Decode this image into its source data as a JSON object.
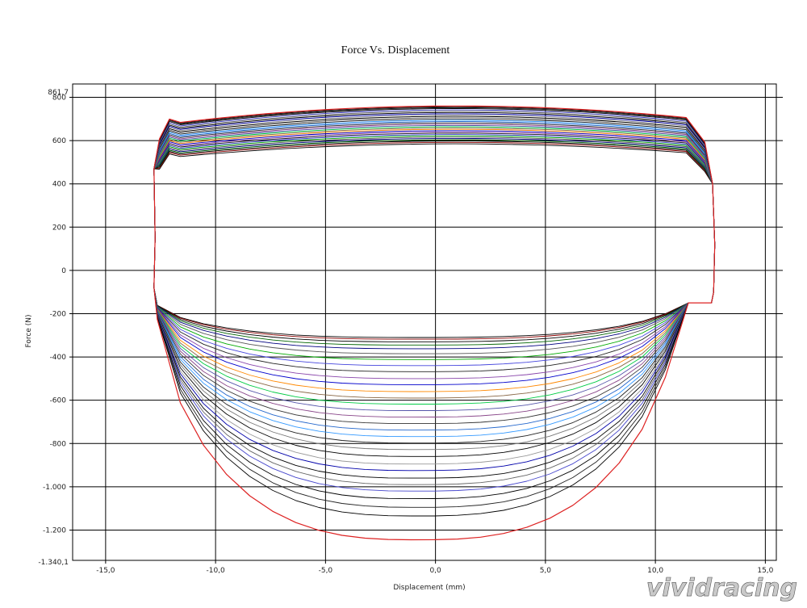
{
  "chart_data": {
    "type": "line",
    "title": "Force Vs. Displacement",
    "xlabel": "Displacement (mm)",
    "ylabel": "Force (N)",
    "xlim": [
      -16.5,
      15.5
    ],
    "ylim": [
      -1340.1,
      861.7
    ],
    "y_limit_labels": {
      "top": "861,7",
      "bottom": "-1.340,1"
    },
    "x_ticks": [
      {
        "value": -15,
        "label": "-15,0"
      },
      {
        "value": -10,
        "label": "-10,0"
      },
      {
        "value": -5,
        "label": "-5,0"
      },
      {
        "value": 0,
        "label": "0,0"
      },
      {
        "value": 5,
        "label": "5,0"
      },
      {
        "value": 10,
        "label": "10,0"
      },
      {
        "value": 15,
        "label": "15,0"
      }
    ],
    "y_ticks": [
      {
        "value": 800,
        "label": "800"
      },
      {
        "value": 600,
        "label": "600"
      },
      {
        "value": 400,
        "label": "400"
      },
      {
        "value": 200,
        "label": "200"
      },
      {
        "value": 0,
        "label": "0"
      },
      {
        "value": -200,
        "label": "-200"
      },
      {
        "value": -400,
        "label": "-400"
      },
      {
        "value": -600,
        "label": "-600"
      },
      {
        "value": -800,
        "label": "-800"
      },
      {
        "value": -1000,
        "label": "-1.000"
      },
      {
        "value": -1200,
        "label": "-1.200"
      }
    ],
    "grid": true,
    "stroke": {
      "x_min": -12.8,
      "x_max": 12.7
    },
    "series": [
      {
        "rebound_peak": 585,
        "compression_peak": -310,
        "color": "#000000"
      },
      {
        "rebound_peak": 592,
        "compression_peak": -318,
        "color": "#8b0000"
      },
      {
        "rebound_peak": 598,
        "compression_peak": -330,
        "color": "#000000"
      },
      {
        "rebound_peak": 604,
        "compression_peak": -345,
        "color": "#006400"
      },
      {
        "rebound_peak": 610,
        "compression_peak": -362,
        "color": "#000080"
      },
      {
        "rebound_peak": 616,
        "compression_peak": -385,
        "color": "#555555"
      },
      {
        "rebound_peak": 622,
        "compression_peak": -412,
        "color": "#00aa00"
      },
      {
        "rebound_peak": 628,
        "compression_peak": -440,
        "color": "#4444dd"
      },
      {
        "rebound_peak": 634,
        "compression_peak": -468,
        "color": "#222222"
      },
      {
        "rebound_peak": 640,
        "compression_peak": -500,
        "color": "#8844aa"
      },
      {
        "rebound_peak": 646,
        "compression_peak": -528,
        "color": "#0000cc"
      },
      {
        "rebound_peak": 652,
        "compression_peak": -560,
        "color": "#ff8800"
      },
      {
        "rebound_peak": 658,
        "compression_peak": -590,
        "color": "#886644"
      },
      {
        "rebound_peak": 664,
        "compression_peak": -618,
        "color": "#00cc44"
      },
      {
        "rebound_peak": 670,
        "compression_peak": -648,
        "color": "#5555aa"
      },
      {
        "rebound_peak": 676,
        "compression_peak": -678,
        "color": "#884488"
      },
      {
        "rebound_peak": 682,
        "compression_peak": -708,
        "color": "#333333"
      },
      {
        "rebound_peak": 688,
        "compression_peak": -738,
        "color": "#2266cc"
      },
      {
        "rebound_peak": 694,
        "compression_peak": -768,
        "color": "#3399ff"
      },
      {
        "rebound_peak": 700,
        "compression_peak": -798,
        "color": "#222222"
      },
      {
        "rebound_peak": 706,
        "compression_peak": -828,
        "color": "#777777"
      },
      {
        "rebound_peak": 712,
        "compression_peak": -860,
        "color": "#000000"
      },
      {
        "rebound_peak": 718,
        "compression_peak": -895,
        "color": "#999999"
      },
      {
        "rebound_peak": 724,
        "compression_peak": -925,
        "color": "#0000aa"
      },
      {
        "rebound_peak": 730,
        "compression_peak": -960,
        "color": "#000000"
      },
      {
        "rebound_peak": 736,
        "compression_peak": -990,
        "color": "#666666"
      },
      {
        "rebound_peak": 742,
        "compression_peak": -1020,
        "color": "#4444cc"
      },
      {
        "rebound_peak": 748,
        "compression_peak": -1055,
        "color": "#000000"
      },
      {
        "rebound_peak": 752,
        "compression_peak": -1095,
        "color": "#222222"
      },
      {
        "rebound_peak": 756,
        "compression_peak": -1135,
        "color": "#000000"
      },
      {
        "rebound_peak": 760,
        "compression_peak": -1245,
        "color": "#dd2222"
      }
    ]
  },
  "watermark": {
    "text": "vividracing"
  }
}
